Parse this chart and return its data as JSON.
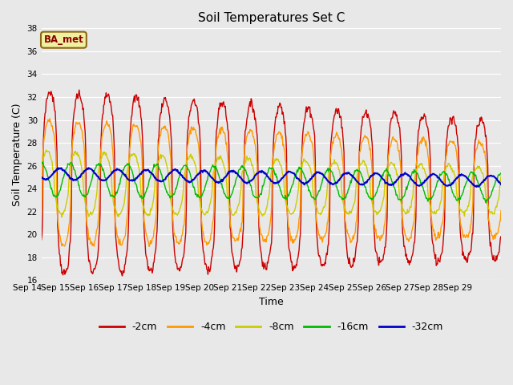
{
  "title": "Soil Temperatures Set C",
  "xlabel": "Time",
  "ylabel": "Soil Temperature (C)",
  "annotation": "BA_met",
  "ylim": [
    16,
    38
  ],
  "yticks": [
    16,
    18,
    20,
    22,
    24,
    26,
    28,
    30,
    32,
    34,
    36,
    38
  ],
  "n_days": 16,
  "x_labels": [
    "Sep 14",
    "Sep 15",
    "Sep 16",
    "Sep 17",
    "Sep 18",
    "Sep 19",
    "Sep 20",
    "Sep 21",
    "Sep 22",
    "Sep 23",
    "Sep 24",
    "Sep 25",
    "Sep 26",
    "Sep 27",
    "Sep 28",
    "Sep 29"
  ],
  "series_labels": [
    "-2cm",
    "-4cm",
    "-8cm",
    "-16cm",
    "-32cm"
  ],
  "series_colors": [
    "#cc0000",
    "#ff9900",
    "#cccc00",
    "#00bb00",
    "#0000cc"
  ],
  "line_width": 1.0,
  "plot_bg_color": "#e8e8e8",
  "fig_bg_color": "#e8e8e8",
  "figsize": [
    6.4,
    4.8
  ],
  "dpi": 100
}
